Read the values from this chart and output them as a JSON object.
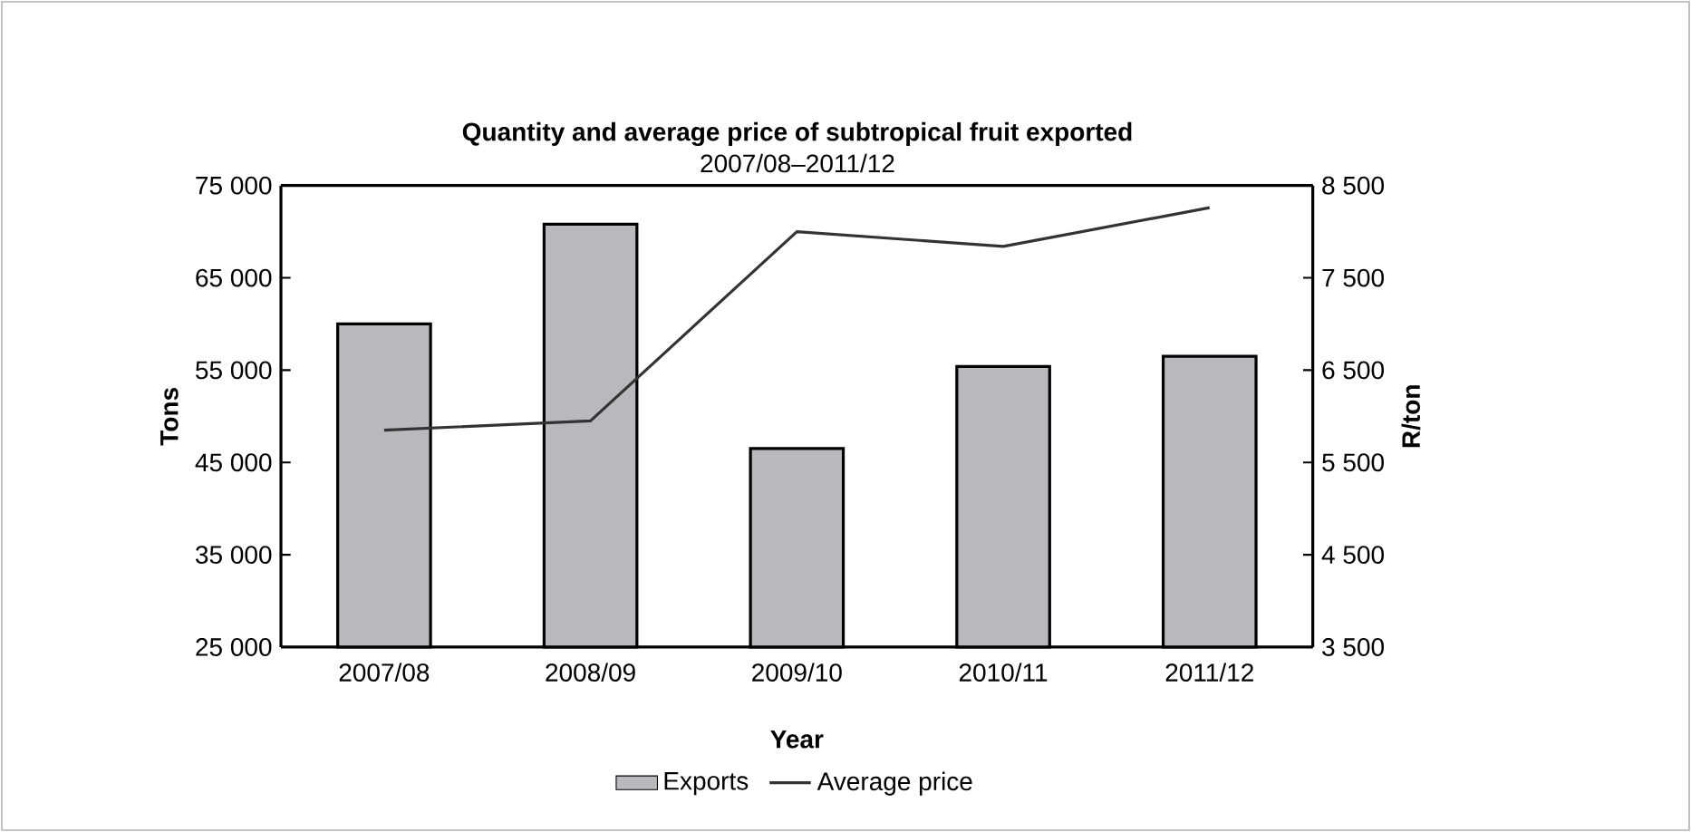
{
  "chart_data": {
    "type": "bar",
    "title": "Quantity and average price of subtropical fruit exported",
    "subtitle": "2007/08–2011/12",
    "categories": [
      "2007/08",
      "2008/09",
      "2009/10",
      "2010/11",
      "2011/12"
    ],
    "series": [
      {
        "name": "Exports",
        "color": "#b8b9bc",
        "values": [
          60000,
          70800,
          46500,
          55400,
          56500
        ]
      },
      {
        "name": "Average price",
        "type": "line",
        "axis": "y2",
        "color": "#333333",
        "values": [
          5850,
          5950,
          8000,
          7840,
          8260
        ]
      }
    ],
    "xlabel": "Year",
    "ylabel": "Tons",
    "y2label": "R/ton",
    "ylim": [
      25000,
      75000
    ],
    "yticks": [
      {
        "value": 25000,
        "label": "25 000"
      },
      {
        "value": 35000,
        "label": "35 000"
      },
      {
        "value": 45000,
        "label": "45 000"
      },
      {
        "value": 55000,
        "label": "55 000"
      },
      {
        "value": 65000,
        "label": "65 000"
      },
      {
        "value": 75000,
        "label": "75 000"
      }
    ],
    "y2lim": [
      3500,
      8500
    ],
    "y2ticks": [
      {
        "value": 3500,
        "label": "3 500"
      },
      {
        "value": 4500,
        "label": "4 500"
      },
      {
        "value": 5500,
        "label": "5 500"
      },
      {
        "value": 6500,
        "label": "6 500"
      },
      {
        "value": 7500,
        "label": "7 500"
      },
      {
        "value": 8500,
        "label": "8 500"
      }
    ],
    "legend": "bottom",
    "marker": "none"
  }
}
